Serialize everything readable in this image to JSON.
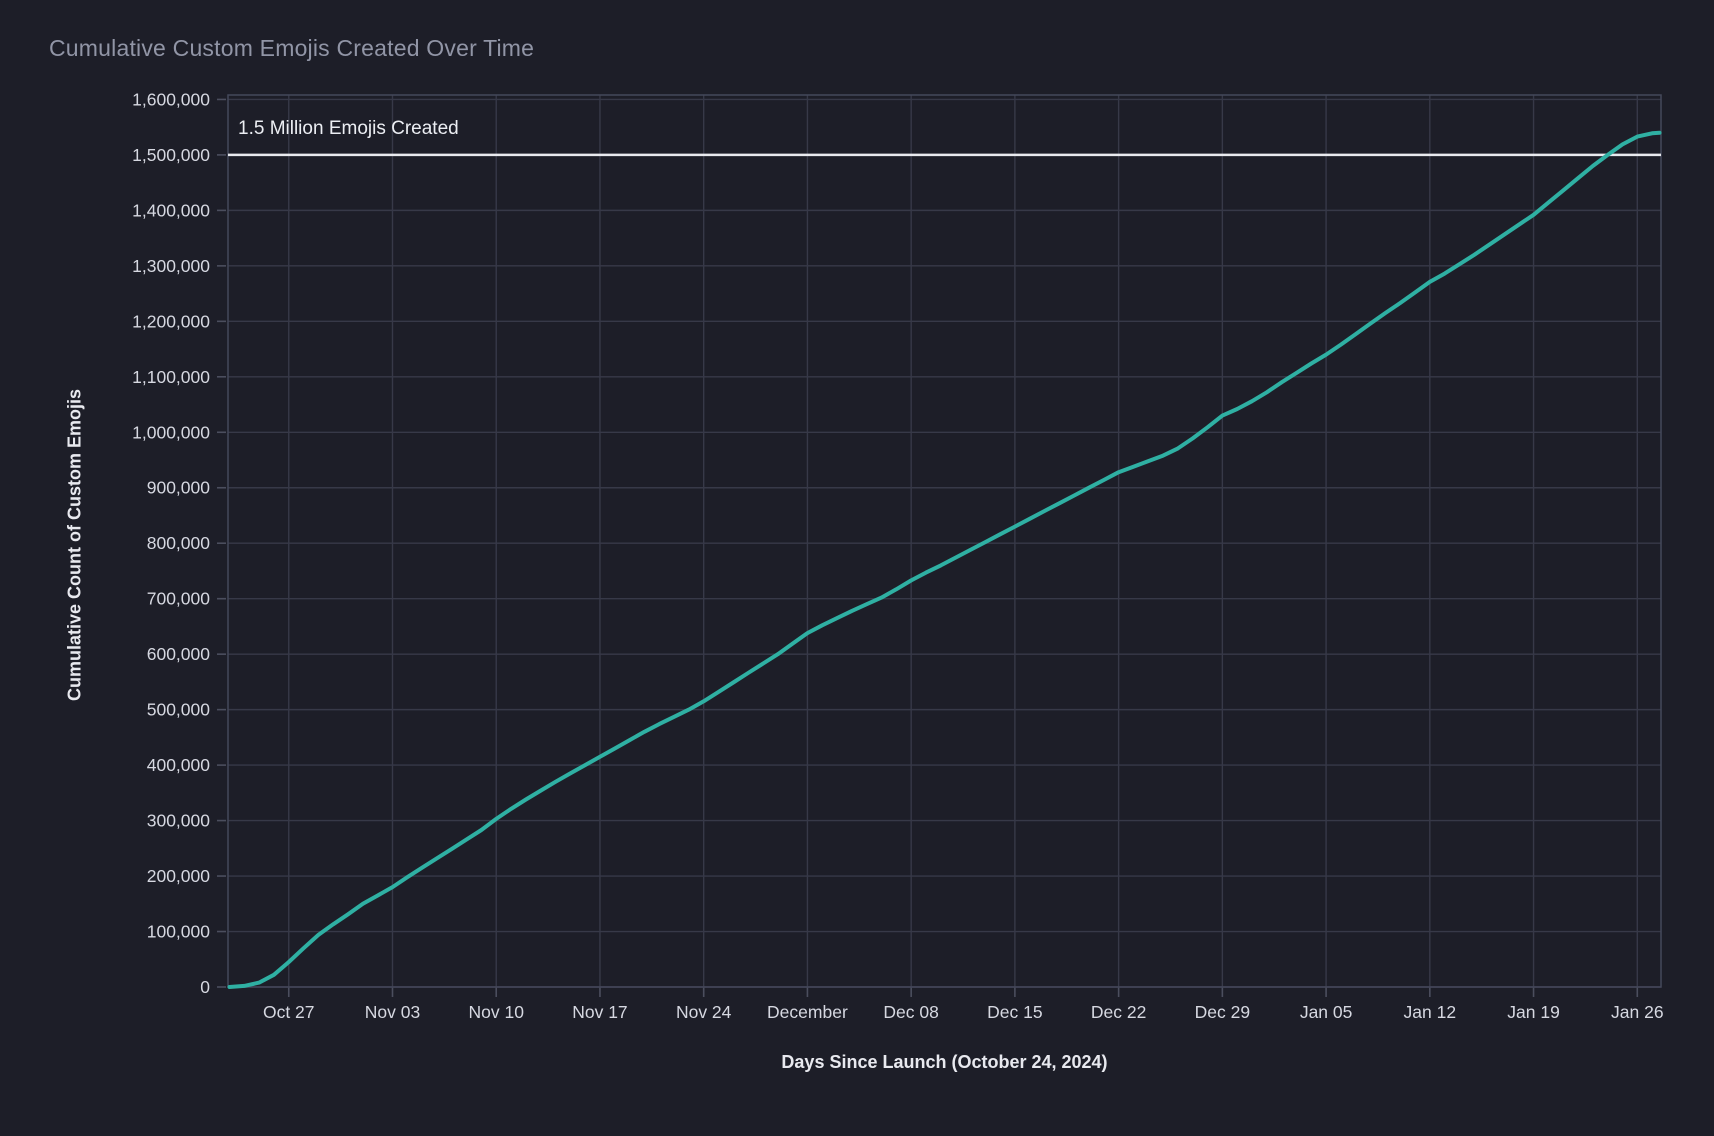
{
  "colors": {
    "background": "#1d1e28",
    "gridline": "#373948",
    "plot_border": "#45485a",
    "tick_mark": "#4b4e5e",
    "tick_label_text": "#d6d8e1",
    "axis_title_text": "#e8e9ef",
    "title_text": "#9195a6",
    "reference_line": "#e9eaef",
    "series_line": "#2fb0a3"
  },
  "chart_data": {
    "type": "line",
    "title": "Cumulative Custom Emojis Created Over Time",
    "xlabel": "Days Since Launch (October 24, 2024)",
    "ylabel": "Cumulative Count of Custom Emojis",
    "grid": true,
    "legend_position": "none",
    "x_range_days": [
      -1.1,
      95.6
    ],
    "y_range": [
      0,
      1608000
    ],
    "x_tick_days": [
      3,
      10,
      17,
      24,
      31,
      38,
      45,
      52,
      59,
      66,
      73,
      80,
      87,
      94
    ],
    "x_tick_labels": [
      "Oct 27",
      "Nov 03",
      "Nov 10",
      "Nov 17",
      "Nov 24",
      "December",
      "Dec 08",
      "Dec 15",
      "Dec 22",
      "Dec 29",
      "Jan 05",
      "Jan 12",
      "Jan 19",
      "Jan 26"
    ],
    "y_ticks": [
      0,
      100000,
      200000,
      300000,
      400000,
      500000,
      600000,
      700000,
      800000,
      900000,
      1000000,
      1100000,
      1200000,
      1300000,
      1400000,
      1500000,
      1600000
    ],
    "y_tick_labels": [
      "0",
      "100,000",
      "200,000",
      "300,000",
      "400,000",
      "500,000",
      "600,000",
      "700,000",
      "800,000",
      "900,000",
      "1,000,000",
      "1,100,000",
      "1,200,000",
      "1,300,000",
      "1,400,000",
      "1,500,000",
      "1,600,000"
    ],
    "reference_line": {
      "y": 1500000,
      "label": "1.5 Million Emojis Created"
    },
    "series": [
      {
        "x_days": [
          -1,
          0,
          1,
          2,
          3,
          4,
          5,
          6,
          7,
          8,
          9,
          10,
          11,
          12,
          13,
          14,
          15,
          16,
          17,
          18,
          19,
          20,
          21,
          22,
          23,
          24,
          25,
          26,
          27,
          28,
          29,
          30,
          31,
          32,
          33,
          34,
          35,
          36,
          37,
          38,
          39,
          40,
          41,
          42,
          43,
          44,
          45,
          46,
          47,
          48,
          49,
          50,
          51,
          52,
          53,
          54,
          55,
          56,
          57,
          58,
          59,
          60,
          61,
          62,
          63,
          64,
          65,
          66,
          67,
          68,
          69,
          70,
          71,
          72,
          73,
          74,
          75,
          76,
          77,
          78,
          79,
          80,
          81,
          82,
          83,
          84,
          85,
          86,
          87,
          88,
          89,
          90,
          91,
          92,
          93,
          94,
          95,
          95.5
        ],
        "values": [
          0,
          2000,
          8000,
          22000,
          45000,
          70000,
          94000,
          113000,
          131000,
          150000,
          165000,
          180000,
          198000,
          215000,
          232000,
          249000,
          266000,
          283000,
          303000,
          321000,
          338000,
          354000,
          370000,
          385000,
          400000,
          415000,
          430000,
          445000,
          460000,
          474000,
          487000,
          500000,
          515000,
          532000,
          549000,
          566000,
          583000,
          600000,
          619000,
          638000,
          652000,
          665000,
          678000,
          690000,
          702000,
          717000,
          733000,
          747000,
          760000,
          774000,
          788000,
          802000,
          816000,
          830000,
          844000,
          858000,
          872000,
          886000,
          900000,
          914000,
          928000,
          938000,
          948000,
          958000,
          971000,
          989000,
          1009000,
          1030000,
          1042000,
          1056000,
          1072000,
          1090000,
          1107000,
          1124000,
          1140000,
          1158000,
          1177000,
          1196000,
          1215000,
          1233000,
          1252000,
          1271000,
          1286000,
          1303000,
          1320000,
          1338000,
          1356000,
          1374000,
          1392000,
          1414000,
          1436000,
          1458000,
          1480000,
          1500000,
          1519000,
          1533000,
          1539000,
          1540000
        ]
      }
    ]
  }
}
